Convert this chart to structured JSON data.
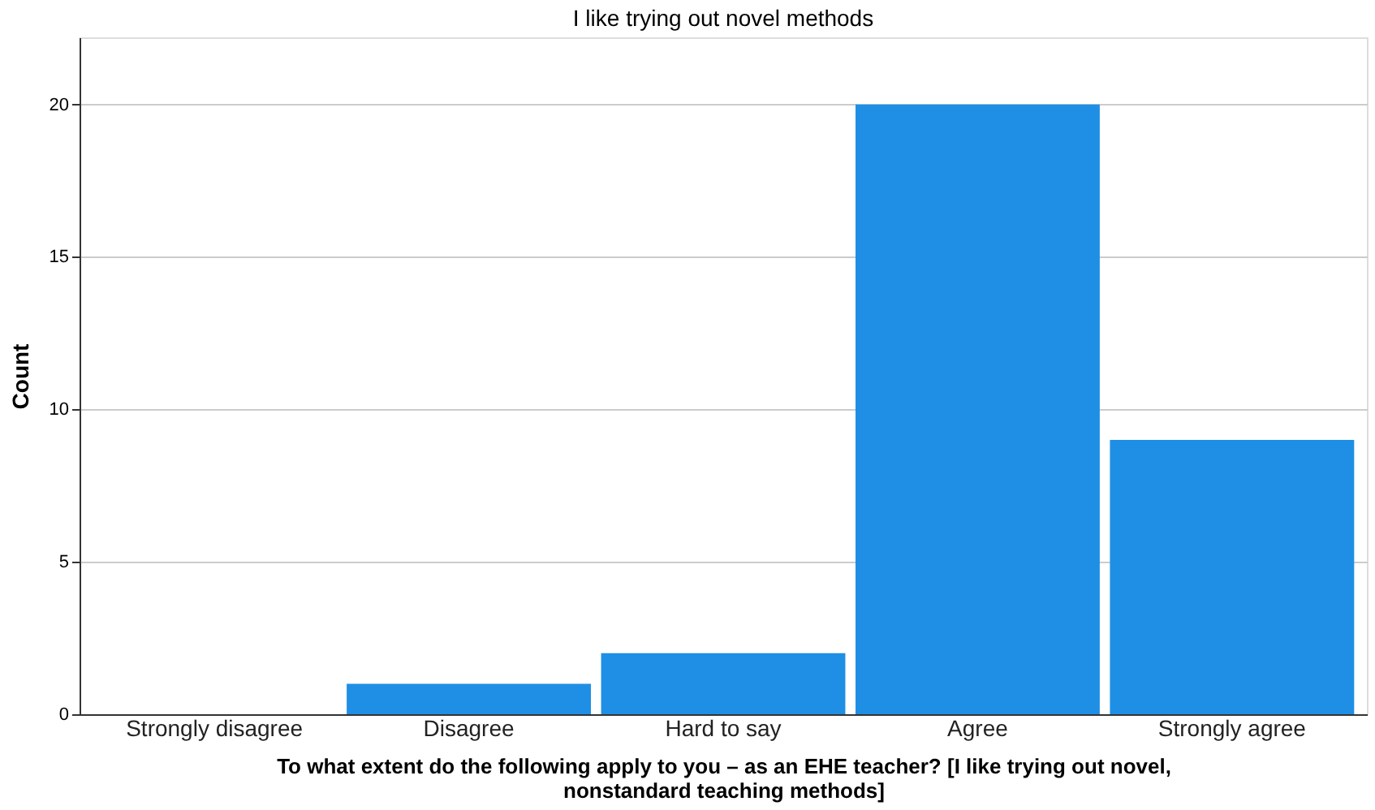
{
  "chart_data": {
    "type": "bar",
    "title": "I like trying out novel methods",
    "xlabel": "To what extent do the following apply to you – as an EHE teacher?  [I like trying out novel, nonstandard teaching methods]",
    "ylabel": "Count",
    "categories": [
      "Strongly disagree",
      "Disagree",
      "Hard to say",
      "Agree",
      "Strongly agree"
    ],
    "values": [
      0,
      1,
      2,
      20,
      9
    ],
    "color": "#1f8fe5",
    "ylim": [
      0,
      22.2
    ],
    "yticks": [
      0,
      5,
      10,
      15,
      20
    ],
    "grid": "y"
  }
}
